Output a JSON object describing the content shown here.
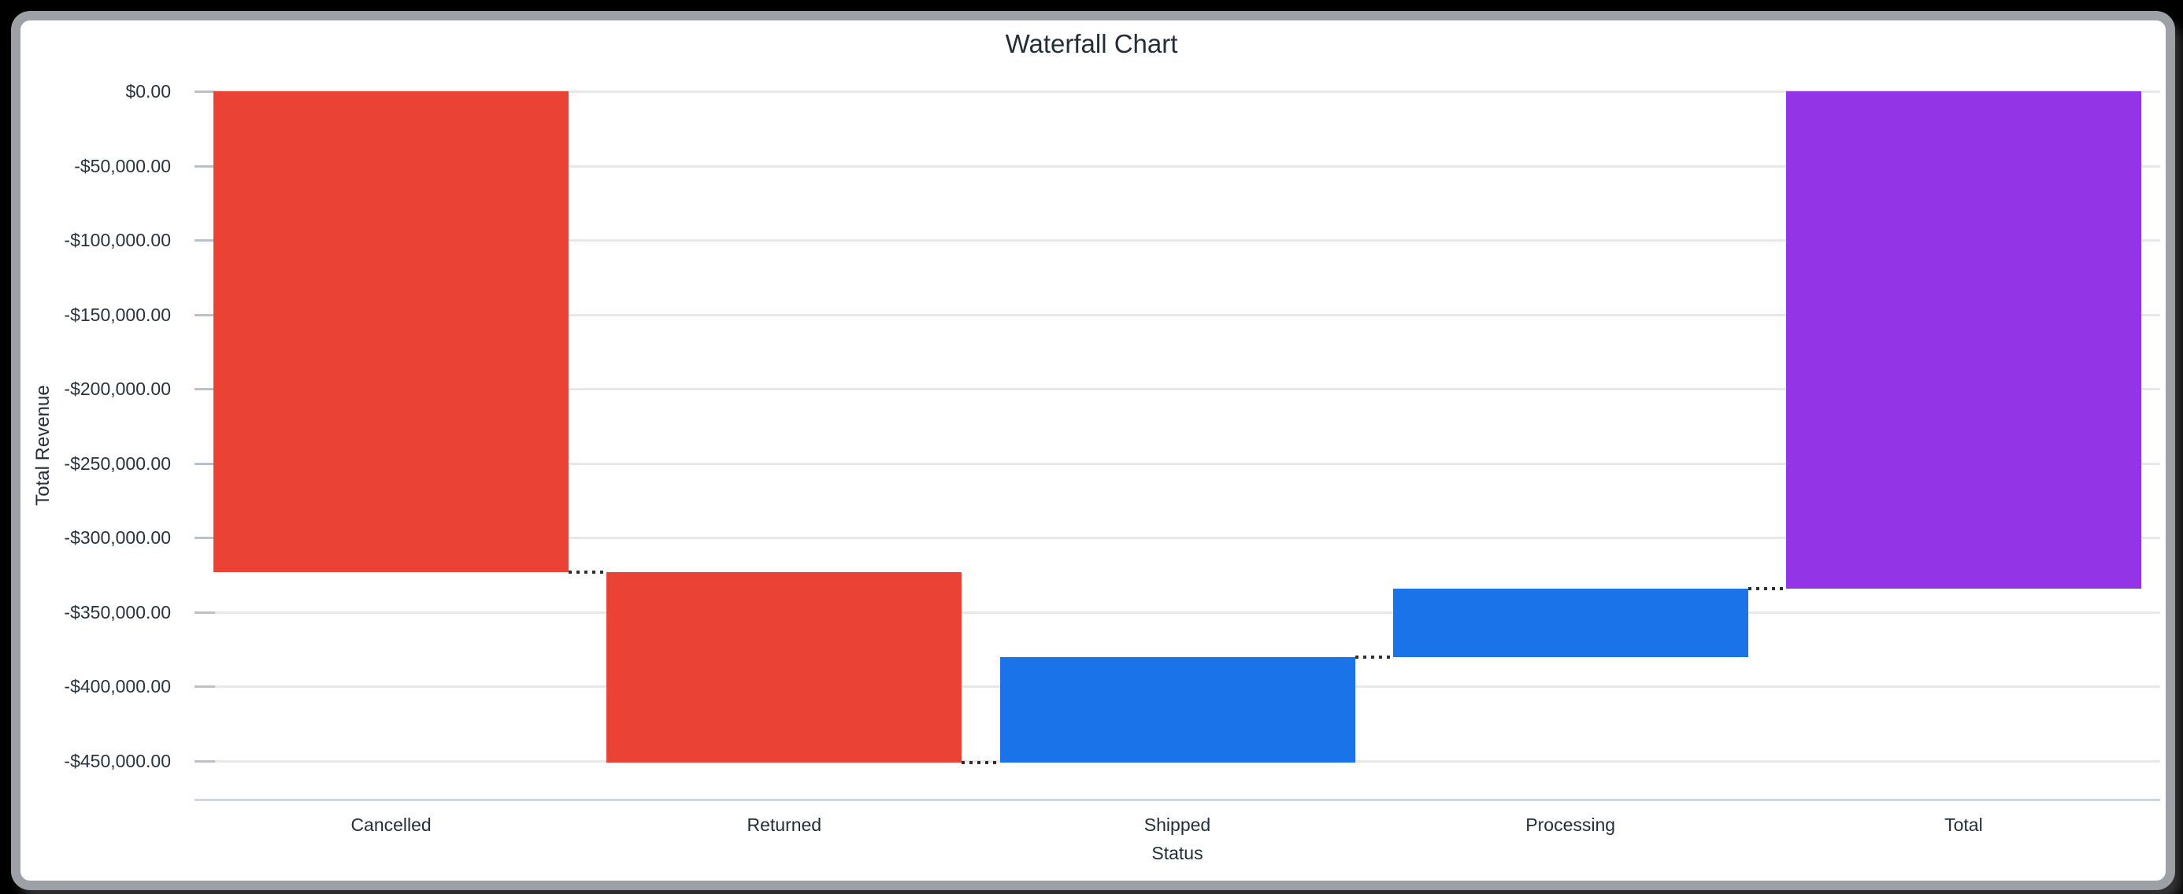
{
  "chart_data": {
    "type": "bar",
    "variant": "waterfall",
    "title": "Waterfall Chart",
    "xlabel": "Status",
    "ylabel": "Total Revenue",
    "categories": [
      "Cancelled",
      "Returned",
      "Shipped",
      "Processing",
      "Total"
    ],
    "bars": [
      {
        "label": "Cancelled",
        "kind": "decrease",
        "delta": -323300,
        "start": 0,
        "end": -323300,
        "color": "#EA4335"
      },
      {
        "label": "Returned",
        "kind": "decrease",
        "delta": -127900,
        "start": -323300,
        "end": -451200,
        "color": "#EA4335"
      },
      {
        "label": "Shipped",
        "kind": "increase",
        "delta": 70900,
        "start": -451200,
        "end": -380300,
        "color": "#1A73E8"
      },
      {
        "label": "Processing",
        "kind": "increase",
        "delta": 46100,
        "start": -380300,
        "end": -334200,
        "color": "#1A73E8"
      },
      {
        "label": "Total",
        "kind": "total",
        "delta": -334200,
        "start": 0,
        "end": -334200,
        "color": "#9334E6"
      }
    ],
    "yticks": [
      {
        "value": 0,
        "label": "$0.00"
      },
      {
        "value": -50000,
        "label": "-$50,000.00"
      },
      {
        "value": -100000,
        "label": "-$100,000.00"
      },
      {
        "value": -150000,
        "label": "-$150,000.00"
      },
      {
        "value": -200000,
        "label": "-$200,000.00"
      },
      {
        "value": -250000,
        "label": "-$250,000.00"
      },
      {
        "value": -300000,
        "label": "-$300,000.00"
      },
      {
        "value": -350000,
        "label": "-$350,000.00"
      },
      {
        "value": -400000,
        "label": "-$400,000.00"
      },
      {
        "value": -450000,
        "label": "-$450,000.00"
      }
    ],
    "ylim": [
      -476500,
      0
    ],
    "grid": true,
    "legend": "none",
    "connectors": "dotted"
  },
  "palette": {
    "decrease": "#EA4335",
    "increase": "#1A73E8",
    "total": "#9334E6",
    "gridline": "#E8E8E8",
    "tickmark": "#B9C1CA",
    "axis_baseline": "#CCD5E7",
    "text": "#242E38",
    "card_border": "#9DA0A4",
    "card_background": "#FFFFFF",
    "page_background": "#000000",
    "connector": "#2F2F2F"
  }
}
